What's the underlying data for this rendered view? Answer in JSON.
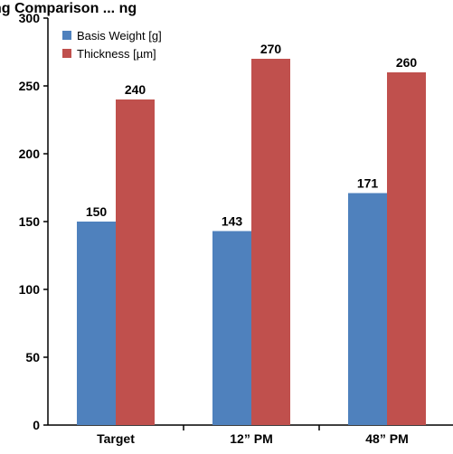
{
  "chart_data": {
    "type": "bar",
    "title": "ng Comparison ... ng",
    "categories": [
      "Target",
      "12” PM",
      "48” PM"
    ],
    "series": [
      {
        "name": "Basis Weight [g]",
        "values": [
          150,
          143,
          171
        ],
        "color": "#4f81bd"
      },
      {
        "name": "Thickness [µm]",
        "values": [
          240,
          270,
          260
        ],
        "color": "#c0504d"
      }
    ],
    "ylim": [
      0,
      300
    ],
    "yticks": [
      0,
      50,
      100,
      150,
      200,
      250,
      300
    ],
    "xlabel": "",
    "ylabel": "",
    "grid": false,
    "legend": "top-left",
    "data_labels": true
  }
}
